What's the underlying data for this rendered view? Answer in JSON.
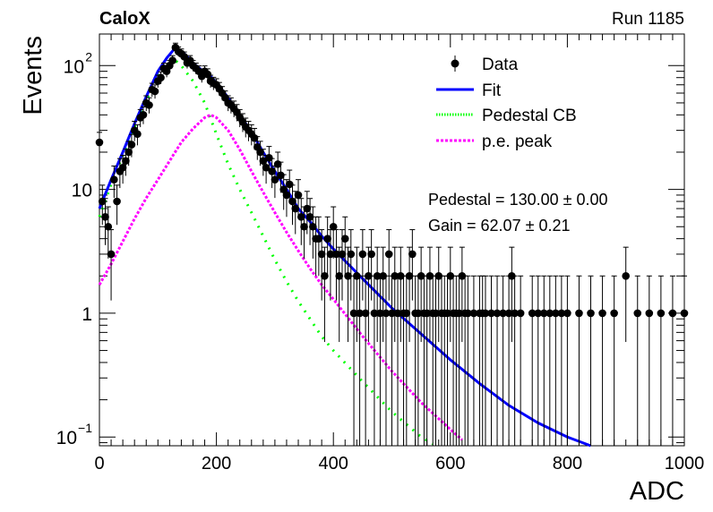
{
  "chart_data": {
    "type": "scatter",
    "corner_left": "CaloX",
    "corner_right": "Run 1185",
    "xlabel": "ADC",
    "ylabel": "Events",
    "xlim": [
      0,
      1000
    ],
    "ylim": [
      0.085,
      180
    ],
    "yscale": "log",
    "x_ticks": [
      "0",
      "200",
      "400",
      "600",
      "800",
      "1000"
    ],
    "y_ticks": [
      {
        "value": 0.1,
        "mantissa": "10",
        "exponent": "-1"
      },
      {
        "value": 1,
        "mantissa": "1",
        "exponent": ""
      },
      {
        "value": 10,
        "mantissa": "10",
        "exponent": ""
      },
      {
        "value": 100,
        "mantissa": "10",
        "exponent": "2"
      }
    ],
    "legend": {
      "position": "top-right",
      "entries": [
        {
          "label": "Data",
          "style": "marker",
          "color": "#000000"
        },
        {
          "label": "Fit",
          "style": "solid",
          "color": "#0000ff"
        },
        {
          "label": "Pedestal CB",
          "style": "dotted",
          "color": "#00ff00"
        },
        {
          "label": "p.e. peak",
          "style": "dotted",
          "color": "#ff00ff"
        }
      ]
    },
    "fit_text": [
      "Pedestal = 130.00 ± 0.00",
      "Gain = 62.07 ± 0.21"
    ],
    "data_points": [
      [
        0,
        24
      ],
      [
        5,
        8
      ],
      [
        10,
        6
      ],
      [
        15,
        5
      ],
      [
        20,
        3
      ],
      [
        25,
        12
      ],
      [
        30,
        8
      ],
      [
        35,
        14
      ],
      [
        40,
        15
      ],
      [
        45,
        17
      ],
      [
        50,
        20
      ],
      [
        55,
        23
      ],
      [
        60,
        30
      ],
      [
        65,
        28
      ],
      [
        70,
        38
      ],
      [
        75,
        40
      ],
      [
        80,
        50
      ],
      [
        85,
        48
      ],
      [
        90,
        64
      ],
      [
        95,
        62
      ],
      [
        100,
        75
      ],
      [
        105,
        80
      ],
      [
        110,
        95
      ],
      [
        115,
        90
      ],
      [
        120,
        100
      ],
      [
        125,
        110
      ],
      [
        130,
        140
      ],
      [
        135,
        130
      ],
      [
        140,
        125
      ],
      [
        145,
        118
      ],
      [
        150,
        105
      ],
      [
        155,
        110
      ],
      [
        160,
        100
      ],
      [
        165,
        95
      ],
      [
        170,
        90
      ],
      [
        175,
        82
      ],
      [
        180,
        90
      ],
      [
        185,
        85
      ],
      [
        190,
        75
      ],
      [
        195,
        72
      ],
      [
        200,
        70
      ],
      [
        205,
        65
      ],
      [
        210,
        60
      ],
      [
        215,
        55
      ],
      [
        220,
        50
      ],
      [
        225,
        48
      ],
      [
        230,
        45
      ],
      [
        235,
        42
      ],
      [
        240,
        38
      ],
      [
        245,
        35
      ],
      [
        250,
        32
      ],
      [
        255,
        30
      ],
      [
        260,
        28
      ],
      [
        265,
        26
      ],
      [
        270,
        22
      ],
      [
        275,
        20
      ],
      [
        280,
        17
      ],
      [
        285,
        15
      ],
      [
        290,
        18
      ],
      [
        295,
        14
      ],
      [
        300,
        12
      ],
      [
        305,
        16
      ],
      [
        310,
        13
      ],
      [
        315,
        10
      ],
      [
        320,
        9
      ],
      [
        325,
        11
      ],
      [
        330,
        8
      ],
      [
        335,
        7
      ],
      [
        340,
        9
      ],
      [
        345,
        6
      ],
      [
        350,
        5
      ],
      [
        355,
        7
      ],
      [
        360,
        6
      ],
      [
        365,
        5
      ],
      [
        370,
        4
      ],
      [
        375,
        4
      ],
      [
        380,
        3
      ],
      [
        385,
        2
      ],
      [
        390,
        4
      ],
      [
        395,
        3
      ],
      [
        400,
        5
      ],
      [
        405,
        3
      ],
      [
        410,
        2
      ],
      [
        415,
        3
      ],
      [
        420,
        4
      ],
      [
        425,
        2
      ],
      [
        430,
        3
      ],
      [
        435,
        1
      ],
      [
        440,
        2
      ],
      [
        445,
        1
      ],
      [
        450,
        3
      ],
      [
        455,
        1
      ],
      [
        460,
        2
      ],
      [
        465,
        3
      ],
      [
        470,
        1
      ],
      [
        475,
        2
      ],
      [
        480,
        1
      ],
      [
        485,
        2
      ],
      [
        490,
        1
      ],
      [
        495,
        3
      ],
      [
        500,
        1
      ],
      [
        505,
        2
      ],
      [
        510,
        1
      ],
      [
        515,
        2
      ],
      [
        520,
        1
      ],
      [
        525,
        1
      ],
      [
        530,
        2
      ],
      [
        535,
        3
      ],
      [
        540,
        1
      ],
      [
        545,
        1
      ],
      [
        550,
        2
      ],
      [
        555,
        1
      ],
      [
        560,
        1
      ],
      [
        565,
        2
      ],
      [
        570,
        1
      ],
      [
        575,
        1
      ],
      [
        580,
        2
      ],
      [
        585,
        1
      ],
      [
        590,
        1
      ],
      [
        595,
        1
      ],
      [
        600,
        2
      ],
      [
        605,
        1
      ],
      [
        610,
        1
      ],
      [
        615,
        1
      ],
      [
        620,
        2
      ],
      [
        625,
        1
      ],
      [
        630,
        1
      ],
      [
        640,
        1
      ],
      [
        650,
        1
      ],
      [
        655,
        1
      ],
      [
        660,
        1
      ],
      [
        670,
        1
      ],
      [
        680,
        1
      ],
      [
        690,
        1
      ],
      [
        700,
        1
      ],
      [
        705,
        2
      ],
      [
        710,
        1
      ],
      [
        720,
        1
      ],
      [
        740,
        1
      ],
      [
        750,
        1
      ],
      [
        760,
        1
      ],
      [
        770,
        1
      ],
      [
        780,
        1
      ],
      [
        790,
        1
      ],
      [
        800,
        1
      ],
      [
        820,
        1
      ],
      [
        840,
        1
      ],
      [
        860,
        1
      ],
      [
        880,
        1
      ],
      [
        900,
        2
      ],
      [
        920,
        1
      ],
      [
        940,
        1
      ],
      [
        960,
        1
      ],
      [
        980,
        1
      ],
      [
        1000,
        1
      ]
    ],
    "fit_curve": [
      [
        0,
        7
      ],
      [
        20,
        12
      ],
      [
        40,
        20
      ],
      [
        60,
        34
      ],
      [
        80,
        56
      ],
      [
        100,
        90
      ],
      [
        115,
        115
      ],
      [
        130,
        140
      ],
      [
        145,
        125
      ],
      [
        160,
        105
      ],
      [
        175,
        92
      ],
      [
        190,
        82
      ],
      [
        205,
        68
      ],
      [
        220,
        55
      ],
      [
        240,
        40
      ],
      [
        260,
        29
      ],
      [
        280,
        20
      ],
      [
        300,
        14
      ],
      [
        320,
        10
      ],
      [
        340,
        7
      ],
      [
        360,
        5.5
      ],
      [
        380,
        4.2
      ],
      [
        400,
        3.3
      ],
      [
        450,
        1.9
      ],
      [
        500,
        1.1
      ],
      [
        550,
        0.68
      ],
      [
        600,
        0.42
      ],
      [
        650,
        0.27
      ],
      [
        700,
        0.18
      ],
      [
        750,
        0.13
      ],
      [
        800,
        0.1
      ],
      [
        840,
        0.085
      ]
    ],
    "pedestal_curve": [
      [
        0,
        6
      ],
      [
        20,
        11
      ],
      [
        40,
        19
      ],
      [
        60,
        32
      ],
      [
        80,
        52
      ],
      [
        100,
        82
      ],
      [
        115,
        100
      ],
      [
        130,
        110
      ],
      [
        140,
        100
      ],
      [
        160,
        75
      ],
      [
        180,
        50
      ],
      [
        200,
        28
      ],
      [
        220,
        16
      ],
      [
        240,
        10
      ],
      [
        260,
        6.5
      ],
      [
        280,
        4.2
      ],
      [
        300,
        2.7
      ],
      [
        320,
        1.8
      ],
      [
        340,
        1.25
      ],
      [
        360,
        0.9
      ],
      [
        380,
        0.65
      ],
      [
        400,
        0.5
      ],
      [
        450,
        0.28
      ],
      [
        500,
        0.16
      ],
      [
        550,
        0.1
      ],
      [
        570,
        0.088
      ]
    ],
    "pe_curve": [
      [
        0,
        1.7
      ],
      [
        20,
        2.5
      ],
      [
        40,
        3.8
      ],
      [
        60,
        5.8
      ],
      [
        80,
        8.5
      ],
      [
        100,
        12
      ],
      [
        120,
        17
      ],
      [
        140,
        24
      ],
      [
        160,
        31
      ],
      [
        180,
        38
      ],
      [
        190,
        40
      ],
      [
        200,
        38
      ],
      [
        220,
        30
      ],
      [
        240,
        21
      ],
      [
        260,
        14
      ],
      [
        280,
        9.5
      ],
      [
        300,
        6.5
      ],
      [
        320,
        4.5
      ],
      [
        340,
        3.2
      ],
      [
        360,
        2.3
      ],
      [
        380,
        1.7
      ],
      [
        400,
        1.3
      ],
      [
        450,
        0.65
      ],
      [
        500,
        0.34
      ],
      [
        550,
        0.19
      ],
      [
        600,
        0.115
      ],
      [
        620,
        0.095
      ]
    ]
  }
}
